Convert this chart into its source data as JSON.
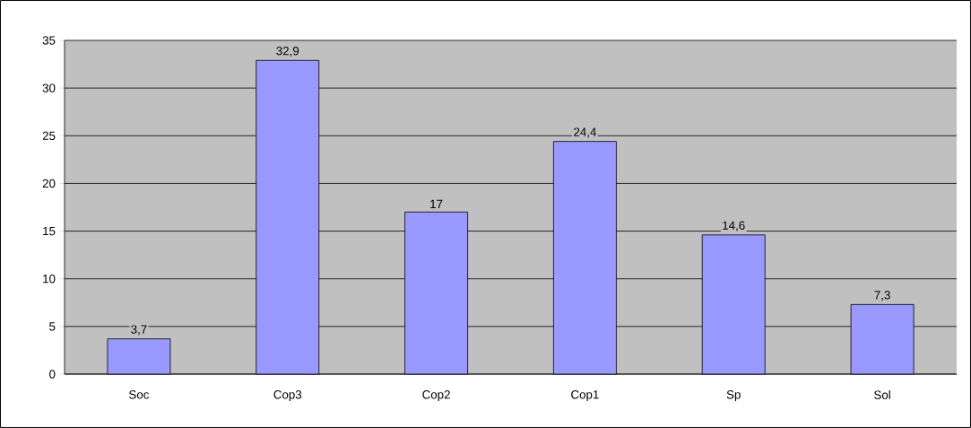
{
  "chart_data": {
    "type": "bar",
    "categories": [
      "Soc",
      "Cop3",
      "Cop2",
      "Cop1",
      "Sp",
      "Sol"
    ],
    "values": [
      3.7,
      32.9,
      17,
      24.4,
      14.6,
      7.3
    ],
    "value_labels": [
      "3,7",
      "32,9",
      "17",
      "24,4",
      "14,6",
      "7,3"
    ],
    "color": "#9999ff",
    "ylim": [
      0,
      35
    ],
    "yticks": [
      0,
      5,
      10,
      15,
      20,
      25,
      30,
      35
    ],
    "grid": "y"
  }
}
